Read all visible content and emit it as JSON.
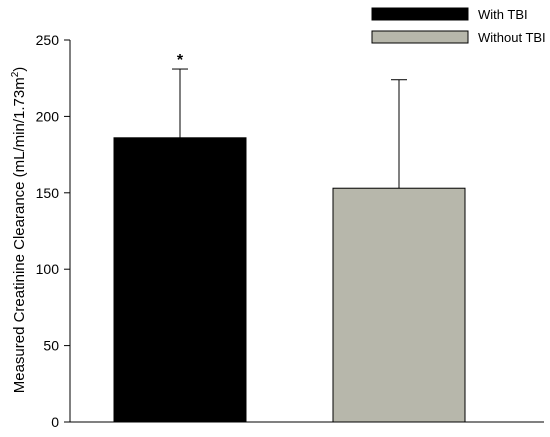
{
  "chart_data": {
    "type": "bar",
    "categories": [
      "With TBI",
      "Without TBI"
    ],
    "series": [
      {
        "name": "With TBI",
        "value": 186,
        "error_upper": 231,
        "color": "#000000",
        "annotation": "*"
      },
      {
        "name": "Without TBI",
        "value": 153,
        "error_upper": 224,
        "color": "#b7b7ab",
        "annotation": ""
      }
    ],
    "ylabel": "Measured Creatinine Clearance (mL/min/1.73m",
    "ylabel_sup": "2",
    "ylabel_close": ")",
    "ylim": [
      0,
      250
    ],
    "yticks": [
      0,
      50,
      100,
      150,
      200,
      250
    ],
    "xlabel": "",
    "title": "",
    "grid": false,
    "legend_position": "top-right"
  },
  "legend": {
    "items": [
      {
        "label": "With TBI",
        "color": "#000000"
      },
      {
        "label": "Without TBI",
        "color": "#b7b7ab"
      }
    ]
  }
}
